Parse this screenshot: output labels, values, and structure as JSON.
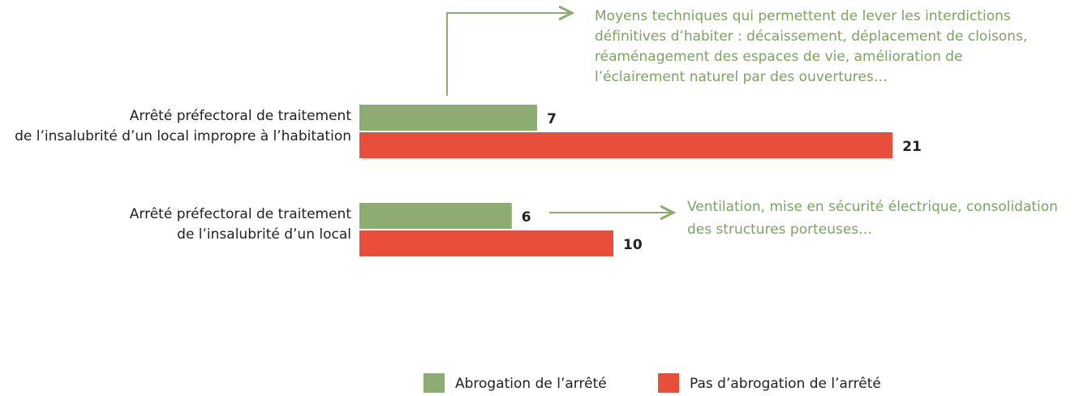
{
  "chart_data": {
    "type": "hbar",
    "categories": [
      [
        "Arrêté préfectoral de traitement",
        "de l’insalubrité d’un local impropre à l’habitation"
      ],
      [
        "Arrêté préfectoral de traitement",
        "de l’insalubrité d’un local"
      ]
    ],
    "series": [
      {
        "name": "Abrogation de l’arrêté",
        "color": "#8cac72",
        "values": [
          7,
          6
        ]
      },
      {
        "name": "Pas d’abrogation de l’arrêté",
        "color": "#e84e3a",
        "values": [
          21,
          10
        ]
      }
    ],
    "annotations": [
      [
        "Moyens techniques qui permettent de lever les interdictions",
        "définitives d’habiter : décaissement, déplacement de cloisons,",
        "réaménagement des espaces de vie, amélioration de",
        "l’éclairement naturel par des ouvertures…"
      ],
      [
        "Ventilation, mise en sécurité électrique, consolidation",
        "des structures porteuses…"
      ]
    ],
    "legend": "bottom"
  }
}
